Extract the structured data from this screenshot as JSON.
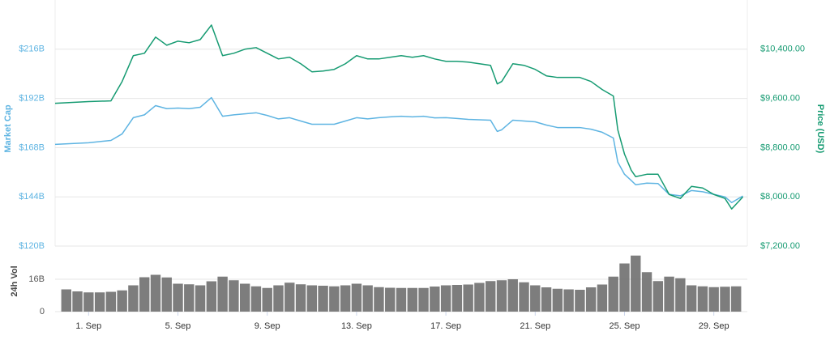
{
  "chart_data": [
    {
      "type": "line",
      "x": [
        -0.5,
        1,
        2,
        2.5,
        3,
        3.5,
        4,
        4.5,
        5,
        5.5,
        6,
        6.5,
        7,
        7.5,
        8,
        8.5,
        9,
        9.5,
        10,
        10.5,
        11,
        11.5,
        12,
        12.5,
        13,
        13.5,
        14,
        14.5,
        15,
        15.5,
        16,
        16.5,
        17,
        17.5,
        18,
        18.5,
        19,
        19.3,
        19.5,
        20,
        20.5,
        21,
        21.5,
        22,
        22.5,
        23,
        23.5,
        24,
        24.5,
        24.7,
        25,
        25.3,
        25.5,
        26,
        26.5,
        27,
        27.5,
        28,
        28.5,
        29,
        29.5,
        29.8,
        30.3
      ],
      "series": [
        {
          "name": "Market Cap",
          "color": "#5eb4e2",
          "values": [
            169.6,
            170.4,
            171.5,
            174.7,
            182.6,
            184,
            188.5,
            187,
            187.3,
            187,
            187.7,
            192.4,
            183.3,
            184,
            184.5,
            185,
            183.7,
            182,
            182.6,
            181,
            179.4,
            179.4,
            179.4,
            181,
            182.6,
            182,
            182.6,
            183,
            183.3,
            183,
            183.3,
            182.5,
            182.6,
            182.2,
            181.8,
            181.6,
            181.4,
            175.9,
            176.7,
            181.4,
            181,
            180.6,
            179,
            177.8,
            177.8,
            177.8,
            177,
            175.5,
            172.7,
            160.9,
            155,
            152,
            149.9,
            150.7,
            150.5,
            145.2,
            144.5,
            147.1,
            146.5,
            145.2,
            144,
            141.2,
            144.4
          ]
        },
        {
          "name": "Price (USD)",
          "color": "#169b72",
          "axis": "y2",
          "values": [
            9521,
            9548,
            9560,
            9875,
            10295,
            10334,
            10597,
            10465,
            10531,
            10505,
            10557,
            10793,
            10295,
            10334,
            10400,
            10426,
            10334,
            10242,
            10269,
            10164,
            10033,
            10046,
            10072,
            10164,
            10295,
            10242,
            10242,
            10269,
            10295,
            10269,
            10295,
            10242,
            10203,
            10203,
            10190,
            10164,
            10138,
            9836,
            9875,
            10164,
            10138,
            10072,
            9967,
            9941,
            9941,
            9941,
            9875,
            9744,
            9639,
            9089,
            8695,
            8433,
            8328,
            8367,
            8367,
            8039,
            7974,
            8170,
            8144,
            8039,
            7974,
            7803,
            8000
          ]
        }
      ],
      "xlim": [
        -0.5,
        30.5
      ],
      "ylim": [
        120,
        240
      ],
      "yticks": [
        {
          "value": 120,
          "label": "$120B"
        },
        {
          "value": 144,
          "label": "$144B"
        },
        {
          "value": 168,
          "label": "$168B"
        },
        {
          "value": 192,
          "label": "$192B"
        },
        {
          "value": 216,
          "label": "$216B"
        }
      ],
      "y2lim": [
        7200,
        11200
      ],
      "y2ticks": [
        {
          "value": 7200,
          "label": "$7,200.00"
        },
        {
          "value": 8000,
          "label": "$8,000.00"
        },
        {
          "value": 8800,
          "label": "$8,800.00"
        },
        {
          "value": 9600,
          "label": "$9,600.00"
        },
        {
          "value": 10400,
          "label": "$10,400.00"
        }
      ],
      "grid": true
    },
    {
      "type": "bar",
      "x": [
        0,
        0.5,
        1,
        1.5,
        2,
        2.5,
        3,
        3.5,
        4,
        4.5,
        5,
        5.5,
        6,
        6.5,
        7,
        7.5,
        8,
        8.5,
        9,
        9.5,
        10,
        10.5,
        11,
        11.5,
        12,
        12.5,
        13,
        13.5,
        14,
        14.5,
        15,
        15.5,
        16,
        16.5,
        17,
        17.5,
        18,
        18.5,
        19,
        19.5,
        20,
        20.5,
        21,
        21.5,
        22,
        22.5,
        23,
        23.5,
        24,
        24.5,
        25,
        25.5,
        26,
        26.5,
        27,
        27.5,
        28,
        28.5,
        29,
        29.5,
        30
      ],
      "series": [
        {
          "name": "24h Vol",
          "color": "#666666",
          "values": [
            11,
            10,
            9.5,
            9.5,
            9.8,
            10.5,
            13,
            17,
            18.2,
            16.9,
            13.8,
            13.5,
            13,
            15,
            17.3,
            15.5,
            13.8,
            12.5,
            11.7,
            13,
            14.3,
            13.5,
            13,
            12.8,
            12.5,
            13,
            13.8,
            13,
            12.1,
            11.8,
            11.7,
            11.7,
            11.7,
            12.4,
            13,
            13.2,
            13.4,
            14.2,
            15.1,
            15.5,
            16,
            14.5,
            13,
            12,
            11.3,
            11,
            10.8,
            12,
            13.4,
            17.3,
            23.8,
            27.7,
            19.5,
            15.1,
            17.3,
            16.5,
            13,
            12.5,
            12.1,
            12.3,
            12.5
          ]
        }
      ],
      "xlim": [
        -0.5,
        30.5
      ],
      "xticks": [
        {
          "value": 1,
          "label": "1. Sep"
        },
        {
          "value": 5,
          "label": "5. Sep"
        },
        {
          "value": 9,
          "label": "9. Sep"
        },
        {
          "value": 13,
          "label": "13. Sep"
        },
        {
          "value": 17,
          "label": "17. Sep"
        },
        {
          "value": 21,
          "label": "21. Sep"
        },
        {
          "value": 25,
          "label": "25. Sep"
        },
        {
          "value": 29,
          "label": "29. Sep"
        }
      ],
      "ylim": [
        0,
        30
      ],
      "yticks": [
        0,
        {
          "value": 16,
          "label": "16B"
        }
      ],
      "grid": true
    }
  ]
}
